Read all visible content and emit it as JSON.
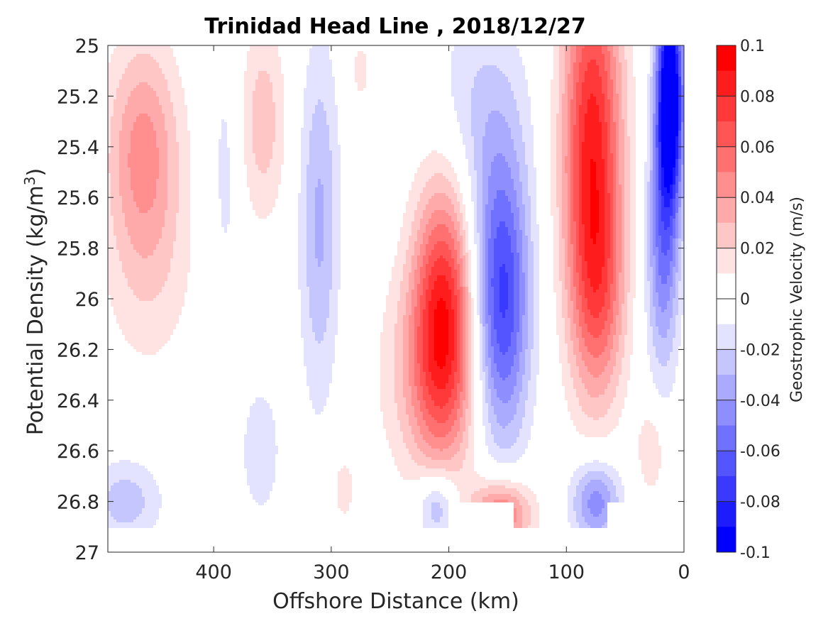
{
  "chart_data": {
    "type": "heatmap",
    "title": "Trinidad Head Line , 2018/12/27",
    "xlabel": "Offshore Distance (km)",
    "ylabel_main": "Potential Density (kg/m",
    "ylabel_sup": "3",
    "ylabel_close": ")",
    "xlim": [
      490,
      0
    ],
    "ylim": [
      25,
      27
    ],
    "x_ticks": [
      400,
      300,
      200,
      100,
      0
    ],
    "x_tick_labels": [
      "400",
      "300",
      "200",
      "100",
      "0"
    ],
    "y_ticks": [
      25,
      25.2,
      25.4,
      25.6,
      25.8,
      26,
      26.2,
      26.4,
      26.6,
      26.8,
      27
    ],
    "y_tick_labels": [
      "25",
      "25.2",
      "25.4",
      "25.6",
      "25.8",
      "26",
      "26.2",
      "26.4",
      "26.6",
      "26.8",
      "27"
    ],
    "colorbar": {
      "label": "Geostrophic Velocity (m/s)",
      "range": [
        -0.1,
        0.1
      ],
      "ticks": [
        0.1,
        0.08,
        0.06,
        0.04,
        0.02,
        0,
        -0.02,
        -0.04,
        -0.06,
        -0.08,
        -0.1
      ],
      "tick_labels": [
        "0.1",
        "0.08",
        "0.06",
        "0.04",
        "0.02",
        "0",
        "-0.02",
        "-0.04",
        "-0.06",
        "-0.08",
        "-0.1"
      ],
      "levels": [
        {
          "lo": 0.09,
          "color": "#ff0000"
        },
        {
          "lo": 0.08,
          "color": "#ff1c1c"
        },
        {
          "lo": 0.07,
          "color": "#ff3939"
        },
        {
          "lo": 0.06,
          "color": "#ff5555"
        },
        {
          "lo": 0.05,
          "color": "#ff7171"
        },
        {
          "lo": 0.04,
          "color": "#ff8e8e"
        },
        {
          "lo": 0.03,
          "color": "#ffaaaa"
        },
        {
          "lo": 0.02,
          "color": "#ffc6c6"
        },
        {
          "lo": 0.01,
          "color": "#ffe3e3"
        },
        {
          "lo": 0.0,
          "color": "#ffffff"
        },
        {
          "lo": -0.01,
          "color": "#ffffff"
        },
        {
          "lo": -0.02,
          "color": "#e3e3ff"
        },
        {
          "lo": -0.03,
          "color": "#c6c6ff"
        },
        {
          "lo": -0.04,
          "color": "#aaaaff"
        },
        {
          "lo": -0.05,
          "color": "#8e8eff"
        },
        {
          "lo": -0.06,
          "color": "#7171ff"
        },
        {
          "lo": -0.07,
          "color": "#5555ff"
        },
        {
          "lo": -0.08,
          "color": "#3939ff"
        },
        {
          "lo": -0.09,
          "color": "#1c1cff"
        },
        {
          "lo": -0.1,
          "color": "#0000ff"
        }
      ]
    },
    "features": [
      {
        "x": 460,
        "y": 25.4,
        "sx": 22,
        "sy": 0.3,
        "amp": 0.042
      },
      {
        "x": 455,
        "y": 25.9,
        "sx": 28,
        "sy": 0.3,
        "amp": 0.016
      },
      {
        "x": 358,
        "y": 25.3,
        "sx": 14,
        "sy": 0.28,
        "amp": 0.026
      },
      {
        "x": 390,
        "y": 25.5,
        "sx": 9,
        "sy": 0.4,
        "amp": -0.014
      },
      {
        "x": 310,
        "y": 25.7,
        "sx": 12,
        "sy": 0.5,
        "amp": -0.032
      },
      {
        "x": 275,
        "y": 25.1,
        "sx": 8,
        "sy": 0.12,
        "amp": 0.013
      },
      {
        "x": 205,
        "y": 26.05,
        "sx": 18,
        "sy": 0.38,
        "amp": 0.076
      },
      {
        "x": 215,
        "y": 26.3,
        "sx": 30,
        "sy": 0.3,
        "amp": 0.028
      },
      {
        "x": 155,
        "y": 26.0,
        "sx": 17,
        "sy": 0.4,
        "amp": -0.075
      },
      {
        "x": 175,
        "y": 25.25,
        "sx": 30,
        "sy": 0.3,
        "amp": -0.02
      },
      {
        "x": 78,
        "y": 25.4,
        "sx": 18,
        "sy": 0.55,
        "amp": 0.085
      },
      {
        "x": 72,
        "y": 26.0,
        "sx": 16,
        "sy": 0.3,
        "amp": 0.032
      },
      {
        "x": 12,
        "y": 25.2,
        "sx": 8,
        "sy": 0.3,
        "amp": -0.12
      },
      {
        "x": 18,
        "y": 25.8,
        "sx": 10,
        "sy": 0.35,
        "amp": -0.05
      },
      {
        "x": 155,
        "y": 26.85,
        "sx": 18,
        "sy": 0.1,
        "amp": 0.058
      },
      {
        "x": 210,
        "y": 26.82,
        "sx": 12,
        "sy": 0.1,
        "amp": -0.038
      },
      {
        "x": 75,
        "y": 26.8,
        "sx": 15,
        "sy": 0.12,
        "amp": -0.048
      },
      {
        "x": 28,
        "y": 26.6,
        "sx": 8,
        "sy": 0.12,
        "amp": 0.022
      },
      {
        "x": 475,
        "y": 26.8,
        "sx": 22,
        "sy": 0.12,
        "amp": -0.026
      },
      {
        "x": 360,
        "y": 26.6,
        "sx": 14,
        "sy": 0.22,
        "amp": -0.016
      },
      {
        "x": 290,
        "y": 26.75,
        "sx": 9,
        "sy": 0.12,
        "amp": 0.014
      }
    ]
  }
}
